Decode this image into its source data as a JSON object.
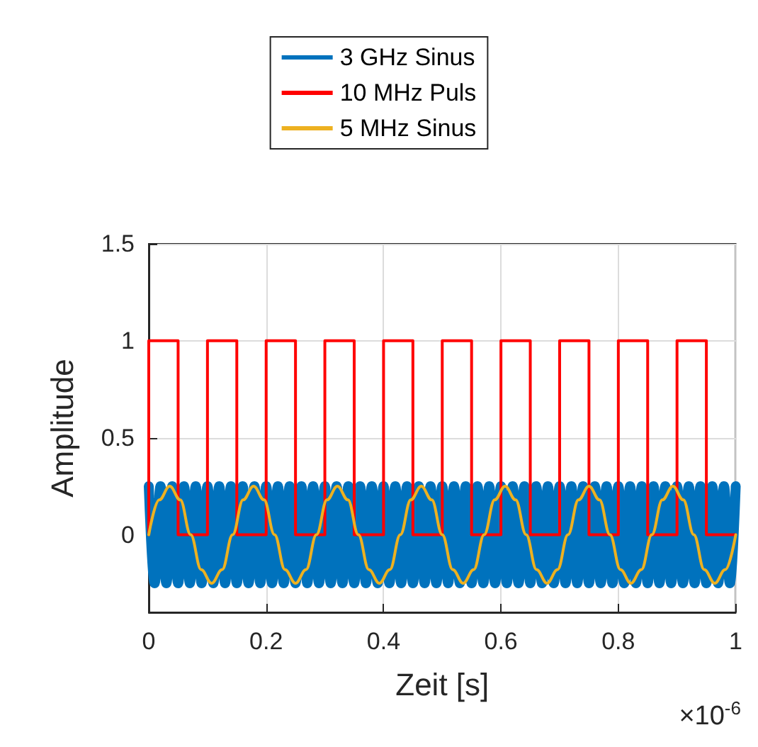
{
  "chart_data": {
    "type": "line",
    "xlabel": "Zeit [s]",
    "ylabel": "Amplitude",
    "annotations": [
      "×10$^{-6}$"
    ],
    "xlim": [
      0,
      1
    ],
    "xticks": [
      0,
      0.2,
      0.4,
      0.6,
      0.8,
      1
    ],
    "ylim": [
      -0.4,
      1.5
    ],
    "yticks": [
      0,
      0.5,
      1,
      1.5
    ],
    "grid": true,
    "legend": "top",
    "series": [
      {
        "name": "3 GHz Sinus",
        "color": "#0072bd",
        "x": [
          0,
          0.01,
          0.02,
          0.03,
          0.04,
          0.05,
          0.06,
          0.07,
          0.08,
          0.09,
          0.1,
          0.11,
          0.12,
          0.13,
          0.14,
          0.15,
          0.16,
          0.17,
          0.18,
          0.19,
          0.2,
          0.21,
          0.22,
          0.23,
          0.24,
          0.25,
          0.26,
          0.27,
          0.28,
          0.29,
          0.3,
          0.31,
          0.32,
          0.33,
          0.34,
          0.35,
          0.36,
          0.37,
          0.38,
          0.39,
          0.4,
          0.41,
          0.42,
          0.43,
          0.44,
          0.45,
          0.46,
          0.47,
          0.48,
          0.49,
          0.5,
          0.51,
          0.52,
          0.53,
          0.54,
          0.55,
          0.56,
          0.57,
          0.58,
          0.59,
          0.6,
          0.61,
          0.62,
          0.63,
          0.64,
          0.65,
          0.66,
          0.67,
          0.68,
          0.69,
          0.7,
          0.71,
          0.72,
          0.73,
          0.74,
          0.75,
          0.76,
          0.77,
          0.78,
          0.79,
          0.8,
          0.81,
          0.82,
          0.83,
          0.84,
          0.85,
          0.86,
          0.87,
          0.88,
          0.89,
          0.9,
          0.91,
          0.92,
          0.93,
          0.94,
          0.95,
          0.96,
          0.97,
          0.98,
          0.99,
          1
        ],
        "values": [
          0.25,
          -0.25,
          0.25,
          -0.25,
          0.25,
          -0.25,
          0.25,
          -0.25,
          0.25,
          -0.25,
          0.25,
          -0.25,
          0.25,
          -0.25,
          0.25,
          -0.25,
          0.25,
          -0.25,
          0.25,
          -0.25,
          0.25,
          -0.25,
          0.25,
          -0.25,
          0.25,
          -0.25,
          0.25,
          -0.25,
          0.25,
          -0.25,
          0.25,
          -0.25,
          0.25,
          -0.25,
          0.25,
          -0.25,
          0.25,
          -0.25,
          0.25,
          -0.25,
          0.25,
          -0.25,
          0.25,
          -0.25,
          0.25,
          -0.25,
          0.25,
          -0.25,
          0.25,
          -0.25,
          0.25,
          -0.25,
          0.25,
          -0.25,
          0.25,
          -0.25,
          0.25,
          -0.25,
          0.25,
          -0.25,
          0.25,
          -0.25,
          0.25,
          -0.25,
          0.25,
          -0.25,
          0.25,
          -0.25,
          0.25,
          -0.25,
          0.25,
          -0.25,
          0.25,
          -0.25,
          0.25,
          -0.25,
          0.25,
          -0.25,
          0.25,
          -0.25,
          0.25,
          -0.25,
          0.25,
          -0.25,
          0.25,
          -0.25,
          0.25,
          -0.25,
          0.25,
          -0.25,
          0.25,
          -0.25,
          0.25,
          -0.25,
          0.25,
          -0.25,
          0.25,
          -0.25,
          0.25,
          -0.25,
          0.25
        ]
      },
      {
        "name": "10 MHz Puls",
        "color": "#ff0000",
        "type": "step",
        "x": [
          0,
          0,
          0.05,
          0.1,
          0.15,
          0.2,
          0.25,
          0.3,
          0.35,
          0.4,
          0.45,
          0.5,
          0.55,
          0.6,
          0.65,
          0.7,
          0.75,
          0.8,
          0.85,
          0.9,
          0.95,
          1
        ],
        "values": [
          0,
          1,
          0,
          1,
          0,
          1,
          0,
          1,
          0,
          1,
          0,
          1,
          0,
          1,
          0,
          1,
          0,
          1,
          0,
          1,
          0,
          0
        ]
      },
      {
        "name": "5 MHz Sinus",
        "color": "#edb120",
        "x": [
          0,
          0.0179,
          0.0357,
          0.0536,
          0.0714,
          0.0893,
          0.1071,
          0.125,
          0.1429,
          0.1607,
          0.1786,
          0.1964,
          0.2143,
          0.2321,
          0.25,
          0.2679,
          0.2857,
          0.3036,
          0.3214,
          0.3393,
          0.3571,
          0.375,
          0.3929,
          0.4107,
          0.4286,
          0.4464,
          0.4643,
          0.4821,
          0.5,
          0.5179,
          0.5357,
          0.5536,
          0.5714,
          0.5893,
          0.6071,
          0.625,
          0.6429,
          0.6607,
          0.6786,
          0.6964,
          0.7143,
          0.7321,
          0.75,
          0.7679,
          0.7857,
          0.8036,
          0.8214,
          0.8393,
          0.8571,
          0.875,
          0.8929,
          0.9107,
          0.9286,
          0.9464,
          0.9643,
          0.9821,
          1
        ],
        "values": [
          0,
          0.18,
          0.25,
          0.18,
          0,
          -0.18,
          -0.25,
          -0.18,
          0,
          0.18,
          0.25,
          0.18,
          0,
          -0.18,
          -0.25,
          -0.18,
          0,
          0.18,
          0.25,
          0.18,
          0,
          -0.18,
          -0.25,
          -0.18,
          0,
          0.18,
          0.25,
          0.18,
          0,
          -0.18,
          -0.25,
          -0.18,
          0,
          0.18,
          0.25,
          0.18,
          0,
          -0.18,
          -0.25,
          -0.18,
          0,
          0.18,
          0.25,
          0.18,
          0,
          -0.18,
          -0.25,
          -0.18,
          0,
          0.18,
          0.25,
          0.18,
          0,
          -0.18,
          -0.25,
          -0.18,
          0
        ]
      }
    ]
  }
}
